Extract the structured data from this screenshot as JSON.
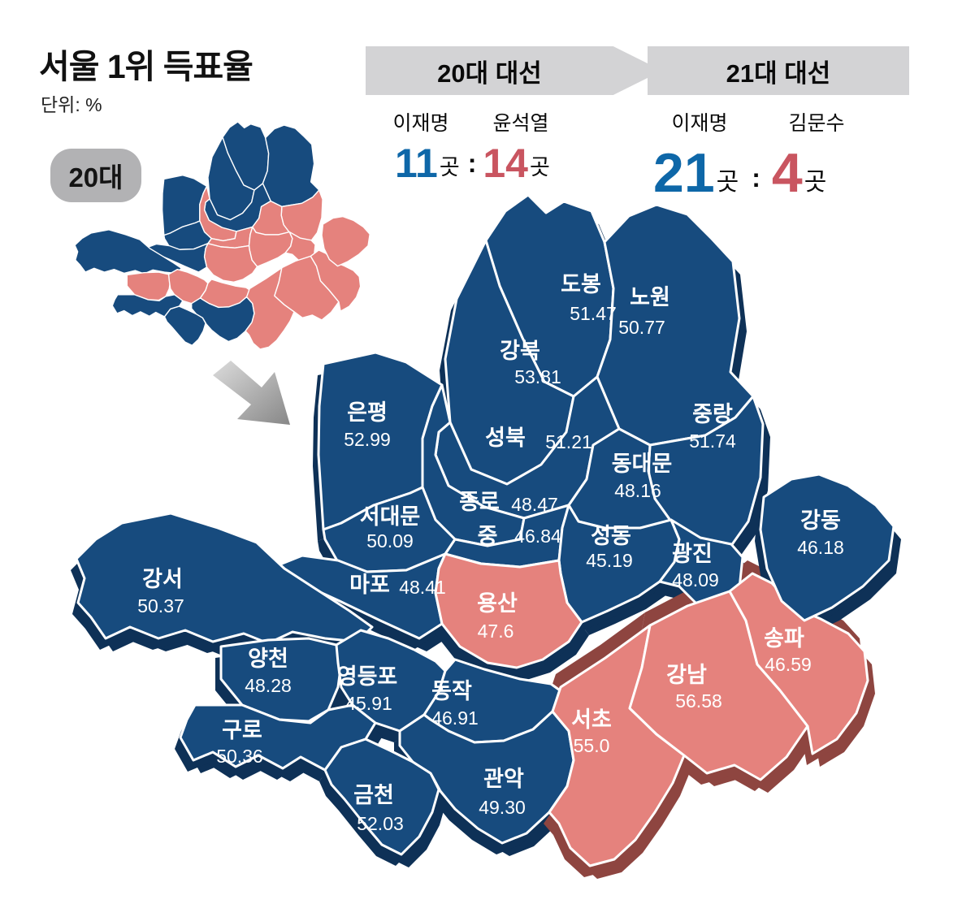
{
  "title": "서울 1위 득표율",
  "unit_label": "단위: %",
  "inset_badge": "20대",
  "separator": ":",
  "colors": {
    "lee_blue": "#0e67a8",
    "conservative_red": "#c95560",
    "map_blue": "#174b7e",
    "map_blue_dark": "#0e3157",
    "map_pink": "#e5827d",
    "map_pink_dark": "#8e4540",
    "banner_gray": "#d3d3d5",
    "badge_gray": "#b2b2b4",
    "arrow_gray_light": "#d9d9d9",
    "arrow_gray_dark": "#8a8a8a"
  },
  "elections": [
    {
      "banner": "20대 대선",
      "candidates": [
        {
          "name": "이재명",
          "count": "11",
          "unit": "곳"
        },
        {
          "name": "윤석열",
          "count": "14",
          "unit": "곳"
        }
      ]
    },
    {
      "banner": "21대 대선",
      "candidates": [
        {
          "name": "이재명",
          "count": "21",
          "unit": "곳"
        },
        {
          "name": "김문수",
          "count": "4",
          "unit": "곳"
        }
      ]
    }
  ],
  "chart_data": {
    "type": "choropleth-map",
    "title": "서울 1위 득표율",
    "value_unit": "%",
    "winner_color_map": {
      "이재명": "blue",
      "윤석열": "red",
      "김문수": "red"
    },
    "districts": [
      {
        "id": "dobong",
        "name": "도봉",
        "value": "51.47",
        "winner_20th": "이재명",
        "winner_21st": "이재명"
      },
      {
        "id": "gangbuk",
        "name": "강북",
        "value": "53.81",
        "winner_20th": "이재명",
        "winner_21st": "이재명"
      },
      {
        "id": "nowon",
        "name": "노원",
        "value": "50.77",
        "winner_20th": "이재명",
        "winner_21st": "이재명"
      },
      {
        "id": "jungnang",
        "name": "중랑",
        "value": "51.74",
        "winner_20th": "윤석열",
        "winner_21st": "이재명"
      },
      {
        "id": "seongbuk",
        "name": "성북",
        "value": "51.21",
        "winner_20th": "이재명",
        "winner_21st": "이재명"
      },
      {
        "id": "dongdaemun",
        "name": "동대문",
        "value": "48.16",
        "winner_20th": "윤석열",
        "winner_21st": "이재명"
      },
      {
        "id": "eunpyeong",
        "name": "은평",
        "value": "52.99",
        "winner_20th": "이재명",
        "winner_21st": "이재명"
      },
      {
        "id": "jongno",
        "name": "종로",
        "value": "48.47",
        "winner_20th": "윤석열",
        "winner_21st": "이재명"
      },
      {
        "id": "seodaemun",
        "name": "서대문",
        "value": "50.09",
        "winner_20th": "이재명",
        "winner_21st": "이재명"
      },
      {
        "id": "jung",
        "name": "중",
        "value": "46.84",
        "winner_20th": "윤석열",
        "winner_21st": "이재명"
      },
      {
        "id": "seongdong",
        "name": "성동",
        "value": "45.19",
        "winner_20th": "윤석열",
        "winner_21st": "이재명"
      },
      {
        "id": "gwangjin",
        "name": "광진",
        "value": "48.09",
        "winner_20th": "윤석열",
        "winner_21st": "이재명"
      },
      {
        "id": "mapo",
        "name": "마포",
        "value": "48.41",
        "winner_20th": "이재명",
        "winner_21st": "이재명"
      },
      {
        "id": "yongsan",
        "name": "용산",
        "value": "47.6",
        "winner_20th": "윤석열",
        "winner_21st": "김문수"
      },
      {
        "id": "gangseo",
        "name": "강서",
        "value": "50.37",
        "winner_20th": "이재명",
        "winner_21st": "이재명"
      },
      {
        "id": "yangcheon",
        "name": "양천",
        "value": "48.28",
        "winner_20th": "윤석열",
        "winner_21st": "이재명"
      },
      {
        "id": "yeongdeungpo",
        "name": "영등포",
        "value": "45.91",
        "winner_20th": "윤석열",
        "winner_21st": "이재명"
      },
      {
        "id": "dongjak",
        "name": "동작",
        "value": "46.91",
        "winner_20th": "윤석열",
        "winner_21st": "이재명"
      },
      {
        "id": "guro",
        "name": "구로",
        "value": "50.36",
        "winner_20th": "이재명",
        "winner_21st": "이재명"
      },
      {
        "id": "geumcheon",
        "name": "금천",
        "value": "52.03",
        "winner_20th": "이재명",
        "winner_21st": "이재명"
      },
      {
        "id": "gwanak",
        "name": "관악",
        "value": "49.30",
        "winner_20th": "이재명",
        "winner_21st": "이재명"
      },
      {
        "id": "seocho",
        "name": "서초",
        "value": "55.0",
        "winner_20th": "윤석열",
        "winner_21st": "김문수"
      },
      {
        "id": "gangnam",
        "name": "강남",
        "value": "56.58",
        "winner_20th": "윤석열",
        "winner_21st": "김문수"
      },
      {
        "id": "songpa",
        "name": "송파",
        "value": "46.59",
        "winner_20th": "윤석열",
        "winner_21st": "김문수"
      },
      {
        "id": "gangdong",
        "name": "강동",
        "value": "46.18",
        "winner_20th": "윤석열",
        "winner_21st": "이재명"
      }
    ]
  }
}
